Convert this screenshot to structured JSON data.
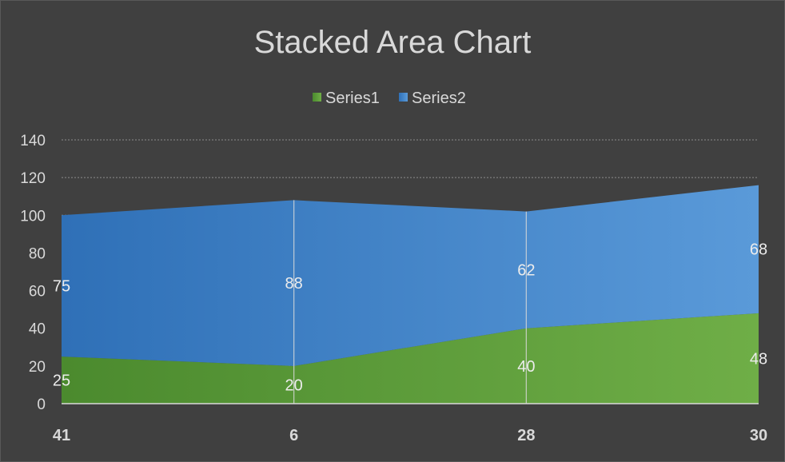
{
  "chart_data": {
    "type": "area",
    "stacked": true,
    "title": "Stacked Area Chart",
    "categories": [
      "41",
      "6",
      "28",
      "30"
    ],
    "series": [
      {
        "name": "Series1",
        "values": [
          25,
          20,
          40,
          48
        ],
        "color": "#5b9a3c"
      },
      {
        "name": "Series2",
        "values": [
          75,
          88,
          62,
          68
        ],
        "color": "#3a82c8"
      }
    ],
    "ylim": [
      0,
      140
    ],
    "yticks": [
      0,
      20,
      40,
      60,
      80,
      100,
      120,
      140
    ],
    "grid": true,
    "legend": "top",
    "data_labels": true
  },
  "theme": {
    "background": "#404040",
    "text": "#d9d9d9",
    "grid": "#8c8c8c"
  }
}
